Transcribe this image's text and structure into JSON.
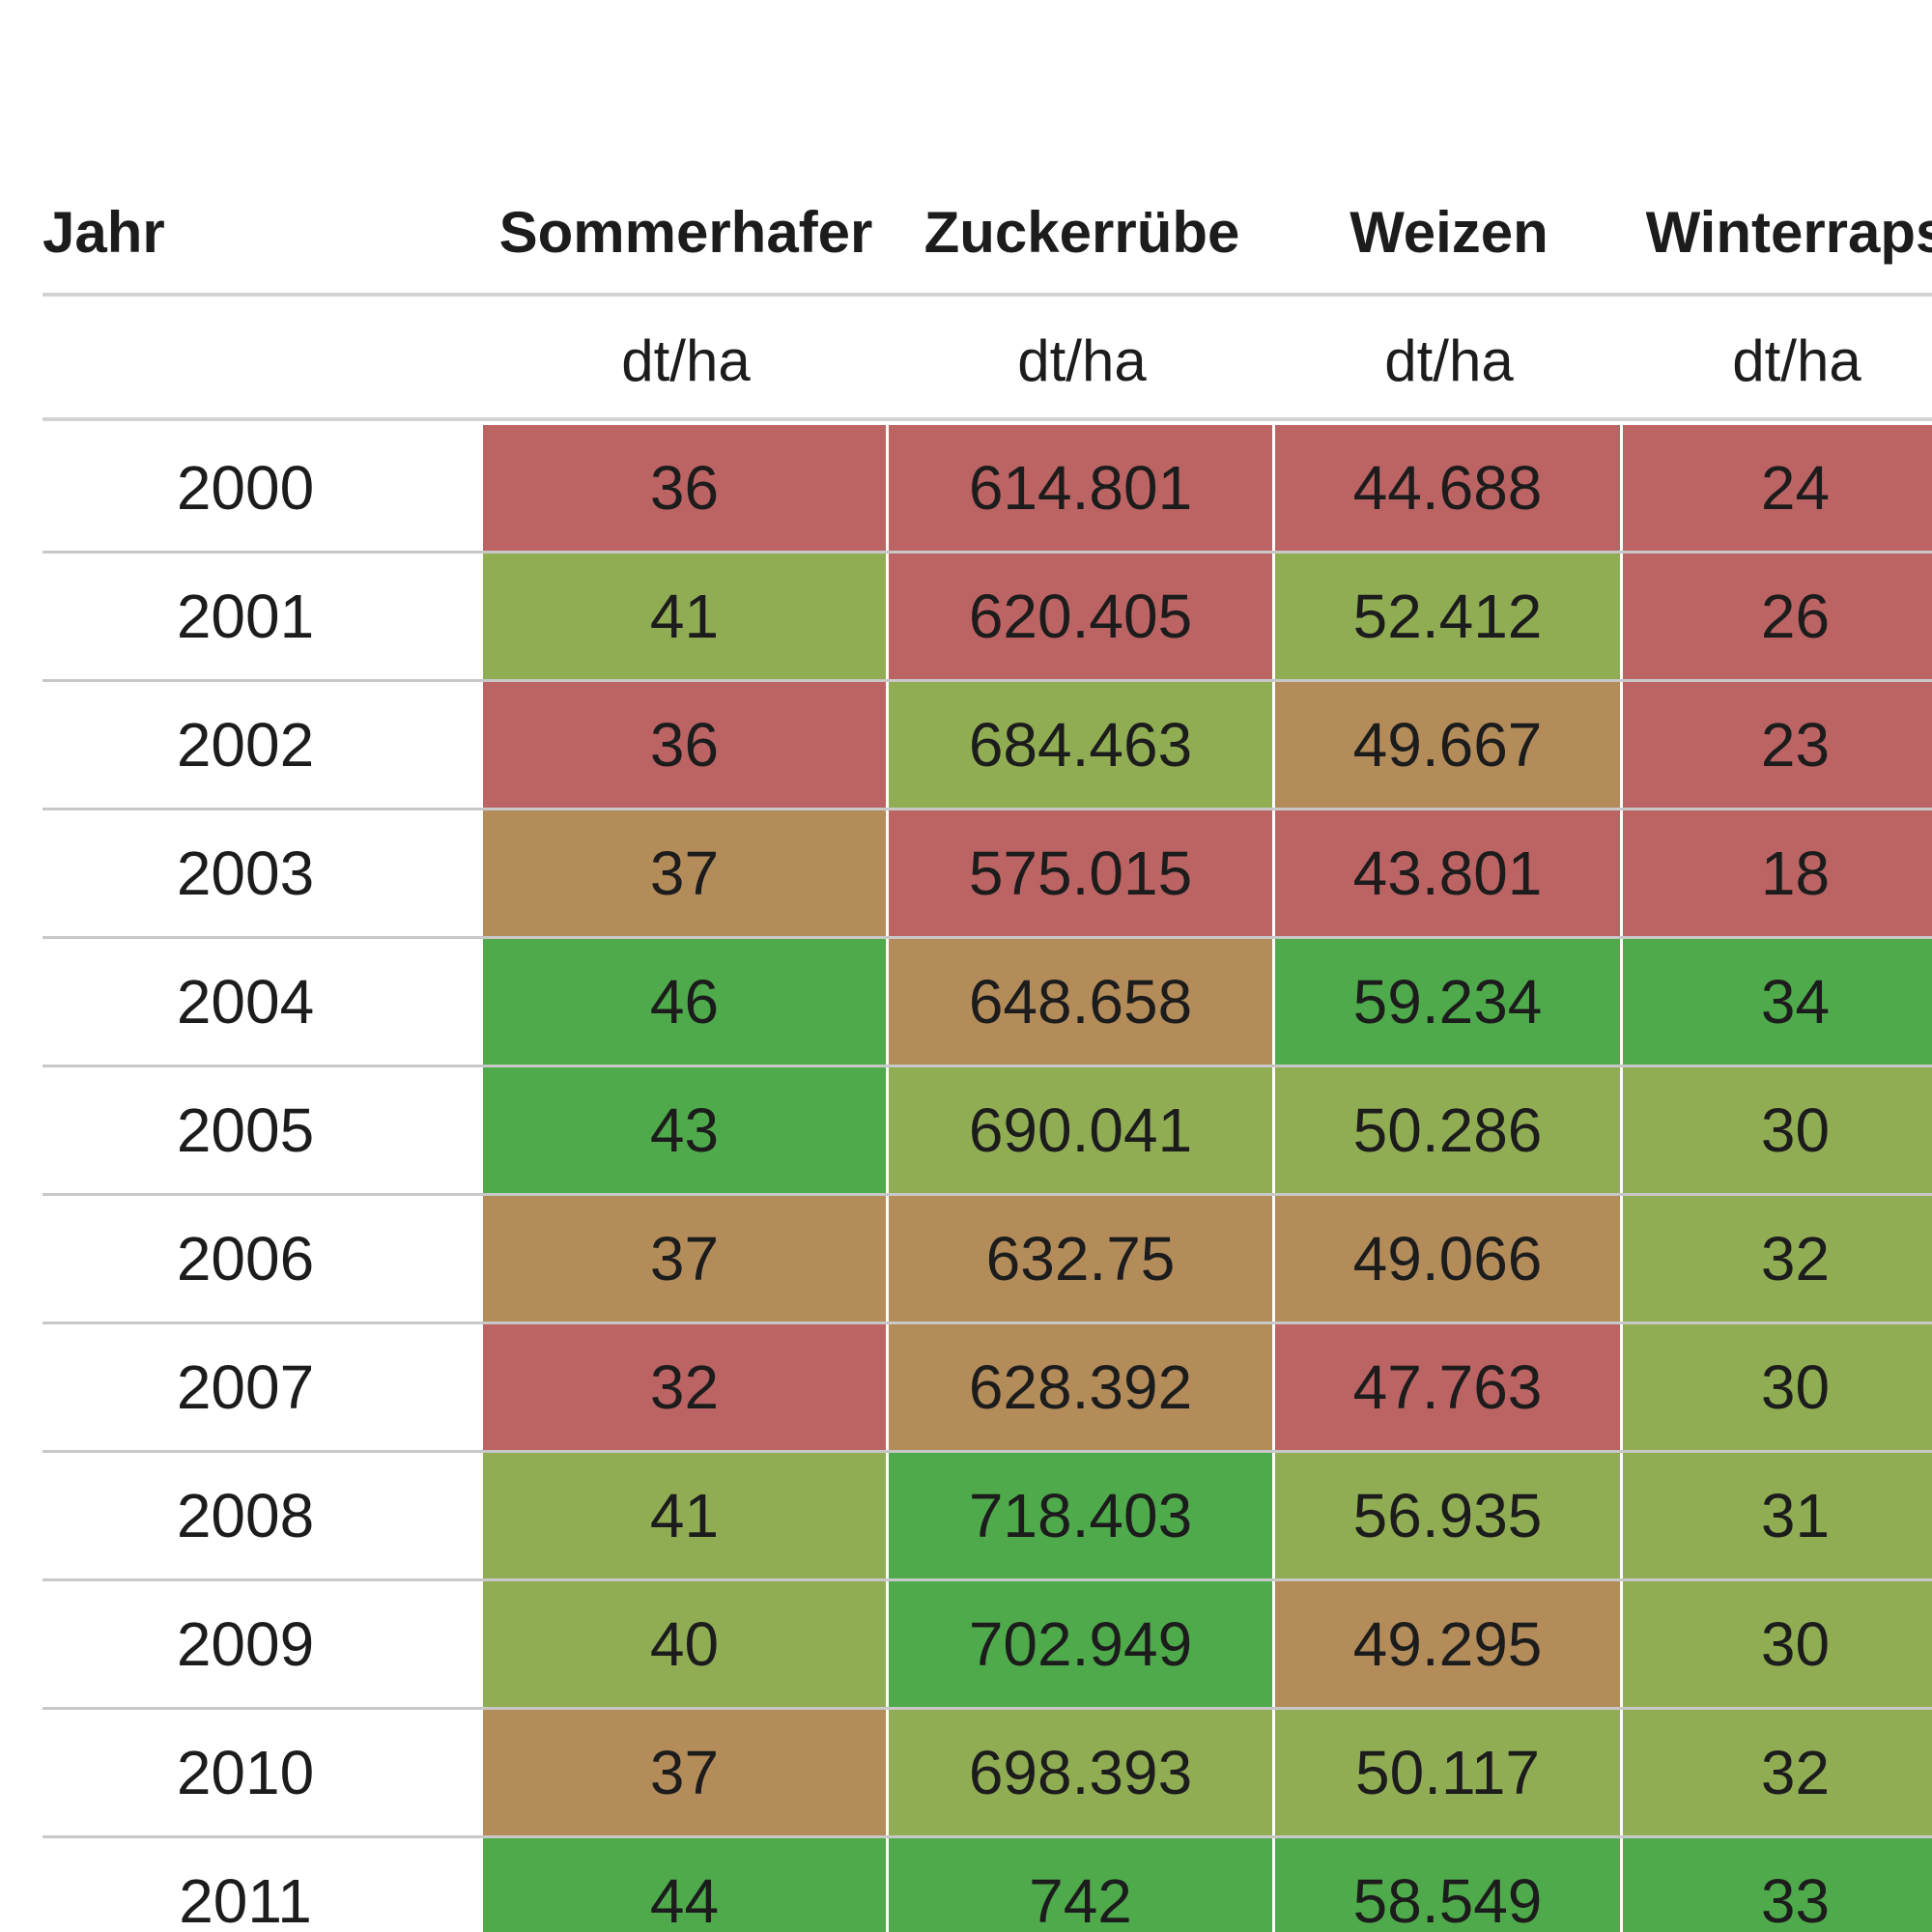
{
  "chart_data": {
    "type": "table",
    "columns": [
      "Jahr",
      "Sommerhafer",
      "Zuckerrübe",
      "Weizen",
      "Winterraps"
    ],
    "units": [
      "",
      "dt/ha",
      "dt/ha",
      "dt/ha",
      "dt/ha"
    ],
    "rows": [
      {
        "year": "2000",
        "values": [
          "36",
          "614.801",
          "44.688",
          "24"
        ],
        "colors": [
          "red",
          "red",
          "red",
          "red"
        ]
      },
      {
        "year": "2001",
        "values": [
          "41",
          "620.405",
          "52.412",
          "26"
        ],
        "colors": [
          "lightgreen",
          "red",
          "lightgreen",
          "red"
        ]
      },
      {
        "year": "2002",
        "values": [
          "36",
          "684.463",
          "49.667",
          "23"
        ],
        "colors": [
          "red",
          "lightgreen",
          "tan",
          "red"
        ]
      },
      {
        "year": "2003",
        "values": [
          "37",
          "575.015",
          "43.801",
          "18"
        ],
        "colors": [
          "tan",
          "red",
          "red",
          "red"
        ]
      },
      {
        "year": "2004",
        "values": [
          "46",
          "648.658",
          "59.234",
          "34"
        ],
        "colors": [
          "green",
          "tan",
          "green",
          "green"
        ]
      },
      {
        "year": "2005",
        "values": [
          "43",
          "690.041",
          "50.286",
          "30"
        ],
        "colors": [
          "green",
          "lightgreen",
          "lightgreen",
          "lightgreen"
        ]
      },
      {
        "year": "2006",
        "values": [
          "37",
          "632.75",
          "49.066",
          "32"
        ],
        "colors": [
          "tan",
          "tan",
          "tan",
          "lightgreen"
        ]
      },
      {
        "year": "2007",
        "values": [
          "32",
          "628.392",
          "47.763",
          "30"
        ],
        "colors": [
          "red",
          "tan",
          "red",
          "lightgreen"
        ]
      },
      {
        "year": "2008",
        "values": [
          "41",
          "718.403",
          "56.935",
          "31"
        ],
        "colors": [
          "lightgreen",
          "green",
          "lightgreen",
          "lightgreen"
        ]
      },
      {
        "year": "2009",
        "values": [
          "40",
          "702.949",
          "49.295",
          "30"
        ],
        "colors": [
          "lightgreen",
          "green",
          "tan",
          "lightgreen"
        ]
      },
      {
        "year": "2010",
        "values": [
          "37",
          "698.393",
          "50.117",
          "32"
        ],
        "colors": [
          "tan",
          "lightgreen",
          "lightgreen",
          "lightgreen"
        ]
      },
      {
        "year": "2011",
        "values": [
          "44",
          "742",
          "58.549",
          "33"
        ],
        "colors": [
          "green",
          "green",
          "green",
          "green"
        ]
      }
    ]
  },
  "palette": {
    "red": "#bc6363",
    "tan": "#b38c5a",
    "lightgreen": "#91ad54",
    "green": "#4faa4c"
  }
}
